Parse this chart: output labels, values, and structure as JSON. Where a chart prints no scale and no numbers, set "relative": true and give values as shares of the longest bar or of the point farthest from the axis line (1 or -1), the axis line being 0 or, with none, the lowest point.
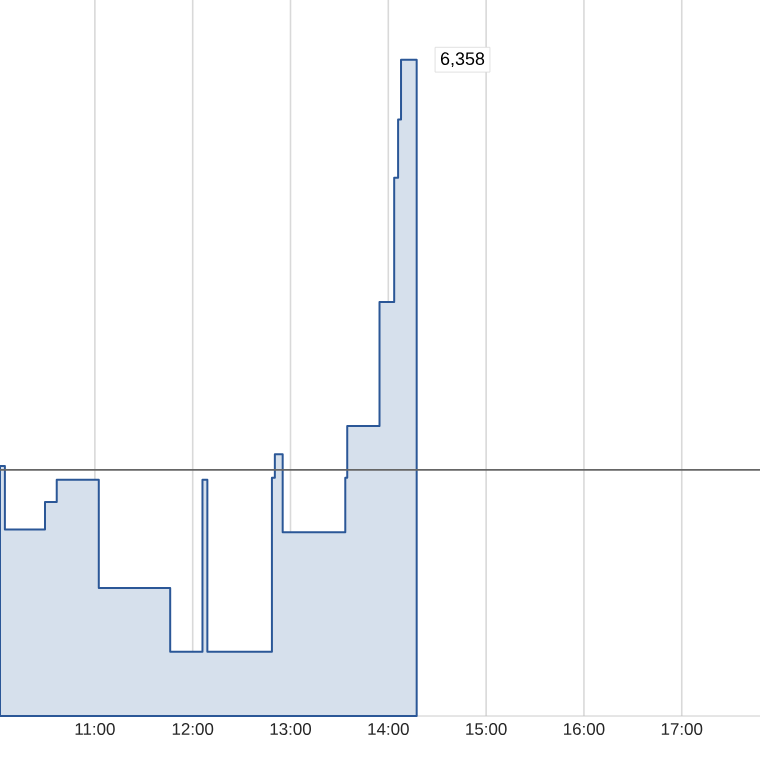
{
  "chart_data": {
    "type": "area",
    "relative": true,
    "xlim": [
      10.03,
      17.8
    ],
    "xticks": [
      {
        "value": 11,
        "label": "11:00"
      },
      {
        "value": 12,
        "label": "12:00"
      },
      {
        "value": 13,
        "label": "13:00"
      },
      {
        "value": 14,
        "label": "14:00"
      },
      {
        "value": 15,
        "label": "15:00"
      },
      {
        "value": 16,
        "label": "16:00"
      },
      {
        "value": 17,
        "label": "17:00"
      }
    ],
    "series": [
      {
        "color": "#2b5797",
        "x": [
          10.03,
          10.08,
          10.49,
          10.61,
          11.04,
          11.77,
          12.1,
          12.15,
          12.81,
          12.84,
          12.92,
          13.56,
          13.58,
          13.91,
          14.06,
          14.1,
          14.13,
          14.29
        ],
        "values": [
          0.381,
          0.284,
          0.326,
          0.36,
          0.195,
          0.098,
          0.36,
          0.098,
          0.363,
          0.399,
          0.28,
          0.363,
          0.442,
          0.631,
          0.82,
          0.909,
          1.0,
          1.0
        ]
      }
    ],
    "ref_lines": [
      {
        "axis": "y",
        "value": 0.375,
        "color": "#666666"
      }
    ],
    "annotations": [
      {
        "text": "6,358",
        "x": 14.29,
        "y": 1.0
      }
    ],
    "grid": "x"
  }
}
